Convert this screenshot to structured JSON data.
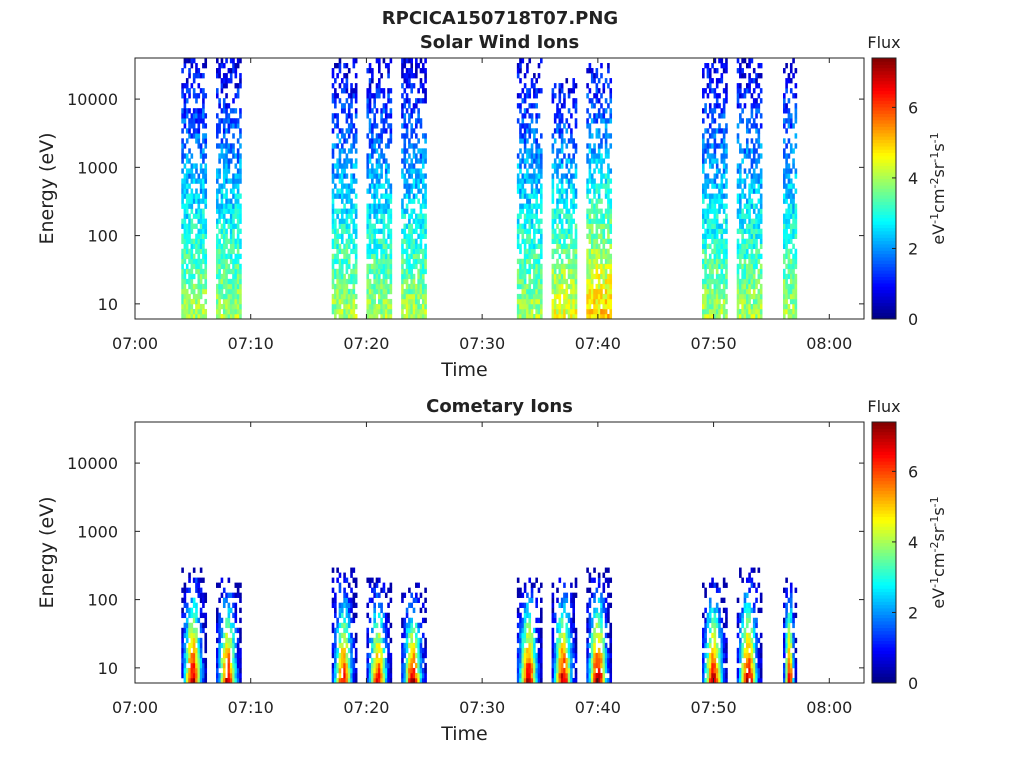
{
  "figure_title": "RPCICA150718T07.PNG",
  "chart_data": [
    {
      "type": "heatmap",
      "title": "Solar Wind Ions",
      "xlabel": "Time",
      "ylabel": "Energy (eV)",
      "yscale": "log",
      "xlim": [
        "07:00",
        "08:03"
      ],
      "ylim": [
        6,
        40000
      ],
      "x_ticks": [
        "07:00",
        "07:10",
        "07:20",
        "07:30",
        "07:40",
        "07:50",
        "08:00"
      ],
      "y_ticks": [
        10,
        100,
        1000,
        10000
      ],
      "y_tick_labels": [
        "10",
        "100",
        "1000",
        "10000"
      ],
      "colorbar": {
        "title": "Flux",
        "label": "eV-1cm-2sr-1s-1",
        "range": [
          0,
          7.4
        ],
        "ticks": [
          0,
          2,
          4,
          6
        ],
        "tick_labels": [
          "0",
          "2",
          "4",
          "6"
        ],
        "colormap": "jet"
      },
      "bursts": [
        {
          "start": "07:04",
          "end": "07:06",
          "emin": 6,
          "emax": 40000,
          "peak_flux": 4.0
        },
        {
          "start": "07:07",
          "end": "07:09",
          "emin": 6,
          "emax": 40000,
          "peak_flux": 4.0
        },
        {
          "start": "07:17",
          "end": "07:19",
          "emin": 6,
          "emax": 40000,
          "peak_flux": 4.0
        },
        {
          "start": "07:20",
          "end": "07:22",
          "emin": 6,
          "emax": 40000,
          "peak_flux": 4.0
        },
        {
          "start": "07:23",
          "end": "07:25",
          "emin": 6,
          "emax": 40000,
          "peak_flux": 4.0
        },
        {
          "start": "07:33",
          "end": "07:35",
          "emin": 6,
          "emax": 40000,
          "peak_flux": 4.0
        },
        {
          "start": "07:36",
          "end": "07:38",
          "emin": 6,
          "emax": 20000,
          "peak_flux": 4.5
        },
        {
          "start": "07:39",
          "end": "07:41",
          "emin": 6,
          "emax": 30000,
          "peak_flux": 5.0
        },
        {
          "start": "07:49",
          "end": "07:51",
          "emin": 6,
          "emax": 40000,
          "peak_flux": 4.0
        },
        {
          "start": "07:52",
          "end": "07:54",
          "emin": 6,
          "emax": 40000,
          "peak_flux": 4.0
        },
        {
          "start": "07:56",
          "end": "07:57",
          "emin": 6,
          "emax": 40000,
          "peak_flux": 4.0
        }
      ]
    },
    {
      "type": "heatmap",
      "title": "Cometary Ions",
      "xlabel": "Time",
      "ylabel": "Energy (eV)",
      "yscale": "log",
      "xlim": [
        "07:00",
        "08:03"
      ],
      "ylim": [
        6,
        40000
      ],
      "x_ticks": [
        "07:00",
        "07:10",
        "07:20",
        "07:30",
        "07:40",
        "07:50",
        "08:00"
      ],
      "y_ticks": [
        10,
        100,
        1000,
        10000
      ],
      "y_tick_labels": [
        "10",
        "100",
        "1000",
        "10000"
      ],
      "colorbar": {
        "title": "Flux",
        "label": "eV-1cm-2sr-1s-1",
        "range": [
          0,
          7.4
        ],
        "ticks": [
          0,
          2,
          4,
          6
        ],
        "tick_labels": [
          "0",
          "2",
          "4",
          "6"
        ],
        "colormap": "jet"
      },
      "bursts": [
        {
          "start": "07:04",
          "end": "07:06",
          "emin": 6,
          "emax": 300,
          "peak_flux": 7.0
        },
        {
          "start": "07:07",
          "end": "07:09",
          "emin": 6,
          "emax": 200,
          "peak_flux": 7.0
        },
        {
          "start": "07:17",
          "end": "07:19",
          "emin": 6,
          "emax": 250,
          "peak_flux": 6.5
        },
        {
          "start": "07:20",
          "end": "07:22",
          "emin": 6,
          "emax": 200,
          "peak_flux": 6.5
        },
        {
          "start": "07:23",
          "end": "07:25",
          "emin": 6,
          "emax": 150,
          "peak_flux": 7.0
        },
        {
          "start": "07:33",
          "end": "07:35",
          "emin": 6,
          "emax": 200,
          "peak_flux": 7.0
        },
        {
          "start": "07:36",
          "end": "07:38",
          "emin": 6,
          "emax": 200,
          "peak_flux": 7.0
        },
        {
          "start": "07:39",
          "end": "07:41",
          "emin": 6,
          "emax": 250,
          "peak_flux": 7.4
        },
        {
          "start": "07:49",
          "end": "07:51",
          "emin": 6,
          "emax": 200,
          "peak_flux": 7.0
        },
        {
          "start": "07:52",
          "end": "07:54",
          "emin": 6,
          "emax": 250,
          "peak_flux": 7.0
        },
        {
          "start": "07:56",
          "end": "07:57",
          "emin": 6,
          "emax": 200,
          "peak_flux": 7.0
        }
      ]
    }
  ]
}
